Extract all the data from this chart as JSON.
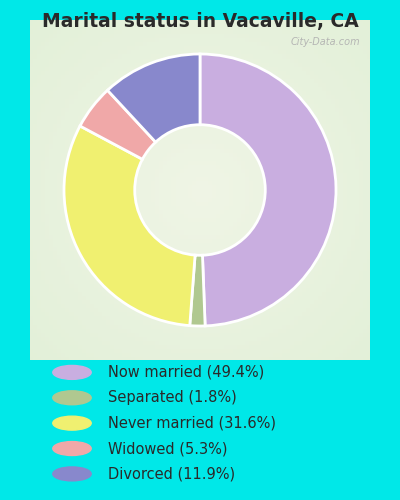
{
  "title": "Marital status in Vacaville, CA",
  "categories": [
    "Now married",
    "Separated",
    "Never married",
    "Widowed",
    "Divorced"
  ],
  "values": [
    49.4,
    1.8,
    31.6,
    5.3,
    11.9
  ],
  "colors": [
    "#c9aee0",
    "#b0c890",
    "#f0f070",
    "#f0a8a8",
    "#8888cc"
  ],
  "legend_labels": [
    "Now married (49.4%)",
    "Separated (1.8%)",
    "Never married (31.6%)",
    "Widowed (5.3%)",
    "Divorced (11.9%)"
  ],
  "bg_outer": "#00e8e8",
  "bg_chart": "#d8ede0",
  "watermark": "City-Data.com",
  "title_fontsize": 13.5,
  "legend_fontsize": 10.5
}
